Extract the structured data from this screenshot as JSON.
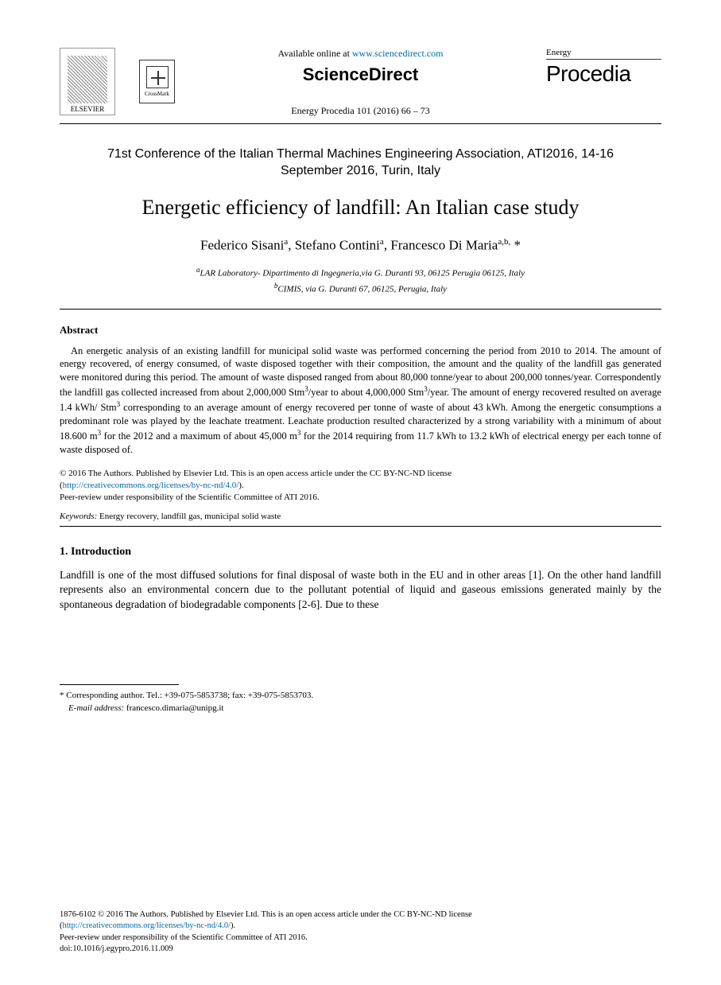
{
  "header": {
    "elsevier_label": "ELSEVIER",
    "crossmark_label": "CrossMark",
    "available_text": "Available online at ",
    "available_link": "www.sciencedirect.com",
    "sciencedirect": "ScienceDirect",
    "citation": "Energy Procedia 101 (2016) 66 – 73",
    "journal_box_label": "Energy",
    "journal_name": "Procedia"
  },
  "conference": "71st Conference of the Italian Thermal Machines Engineering Association, ATI2016, 14-16 September 2016, Turin, Italy",
  "title": "Energetic efficiency of landfill: An Italian case study",
  "authors_html": "Federico Sisani<sup>a</sup>, Stefano Contini<sup>a</sup>, Francesco Di Maria<sup>a,b,</sup> *",
  "affiliations": [
    "<sup>a</sup>LAR Laboratory- Dipartimento di Ingegneria,via G. Duranti 93, 06125 Perugia 06125, Italy",
    "<sup>b</sup>CIMIS, via G. Duranti 67, 06125, Perugia, Italy"
  ],
  "abstract": {
    "heading": "Abstract",
    "body_html": "An energetic analysis of an existing landfill for municipal solid waste was performed concerning the period from 2010 to 2014. The amount of energy recovered, of energy consumed, of waste disposed together with their composition, the amount and the quality of the landfill gas generated were monitored during this period. The amount of waste disposed ranged from about 80,000 tonne/year to about 200,000 tonnes/year. Correspondently the landfill gas collected increased from about 2,000,000 Stm<sup>3</sup>/year to about 4,000,000 Stm<sup>3</sup>/year. The amount of energy recovered resulted on average 1.4 kWh/ Stm<sup>3</sup> corresponding to an average amount of energy recovered per tonne of waste of about 43 kWh. Among the energetic consumptions a predominant role was played by the leachate treatment.  Leachate production resulted characterized by a strong variability with a minimum of about 18.600 m<sup>3</sup> for the 2012 and a maximum of about 45,000 m<sup>3</sup> for the 2014 requiring from 11.7 kWh to 13.2 kWh of electrical energy per each tonne of waste disposed of."
  },
  "copyright": {
    "line1": "© 2016 The Authors. Published by Elsevier Ltd. This is an open access article under the CC BY-NC-ND license",
    "license_url": "http://creativecommons.org/licenses/by-nc-nd/4.0/",
    "line2": "Peer-review under responsibility of the Scientific Committee of ATI 2016."
  },
  "keywords": {
    "label": "Keywords:",
    "text": " Energy recovery, landfill gas, municipal solid waste"
  },
  "section1": {
    "heading": "1. Introduction",
    "body": "Landfill is one of the most diffused solutions for final disposal of waste both in the EU and in other areas [1]. On the other hand landfill represents also an environmental concern due to the pollutant potential of liquid and gaseous emissions generated mainly by the spontaneous degradation of biodegradable components [2-6].  Due to these"
  },
  "footnote": {
    "corresponding": "* Corresponding author. Tel.: +39-075-5853738; fax: +39-075-5853703.",
    "email_label": "E-mail address:",
    "email": " francesco.dimaria@unipg.it"
  },
  "footer": {
    "issn_line": "1876-6102 © 2016 The Authors. Published by Elsevier Ltd. This is an open access article under the CC BY-NC-ND license",
    "license_url": "http://creativecommons.org/licenses/by-nc-nd/4.0/",
    "peer_review": "Peer-review under responsibility of the Scientific Committee of ATI 2016.",
    "doi": "doi:10.1016/j.egypro.2016.11.009"
  },
  "colors": {
    "link": "#0066aa",
    "text": "#000000",
    "bg": "#ffffff"
  }
}
